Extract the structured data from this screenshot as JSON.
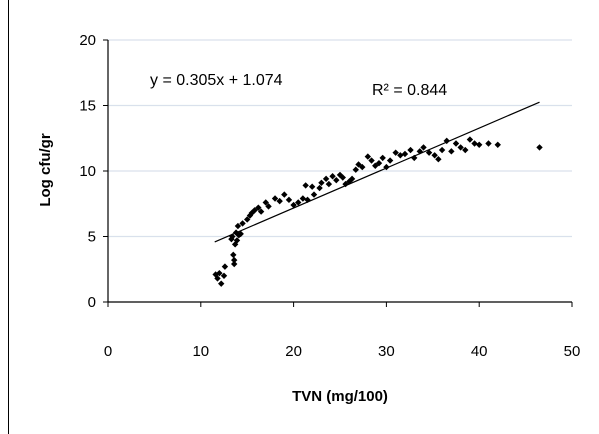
{
  "chart_data": {
    "type": "scatter",
    "title": "",
    "xlabel": "TVN (mg/100)",
    "ylabel": "Log cfu/gr",
    "xlim": [
      0,
      50
    ],
    "ylim": [
      0,
      20
    ],
    "x_ticks": [
      "0",
      "10",
      "20",
      "30",
      "40",
      "50"
    ],
    "y_ticks": [
      "0",
      "5",
      "10",
      "15",
      "20"
    ],
    "grid": "horizontal",
    "colors": {
      "points": "#000000",
      "gridline": "#d9e1ec",
      "trendline": "#000000",
      "axis": "#000000"
    },
    "trendline": {
      "slope": 0.305,
      "intercept": 1.074,
      "x_range": [
        11.5,
        46.5
      ]
    },
    "annotations": {
      "equation": "y = 0.305x + 1.074",
      "r_squared": "R² = 0.844"
    },
    "points": [
      [
        11.6,
        2.1
      ],
      [
        11.8,
        1.8
      ],
      [
        12.0,
        2.2
      ],
      [
        12.2,
        1.4
      ],
      [
        12.5,
        2.0
      ],
      [
        12.6,
        2.7
      ],
      [
        13.3,
        4.8
      ],
      [
        13.4,
        5.0
      ],
      [
        13.5,
        3.6
      ],
      [
        13.6,
        3.2
      ],
      [
        13.6,
        2.9
      ],
      [
        13.7,
        4.4
      ],
      [
        13.8,
        5.3
      ],
      [
        13.9,
        4.7
      ],
      [
        14.0,
        5.8
      ],
      [
        14.1,
        5.1
      ],
      [
        14.3,
        5.2
      ],
      [
        14.5,
        6.0
      ],
      [
        15.0,
        6.3
      ],
      [
        15.3,
        6.6
      ],
      [
        15.5,
        6.8
      ],
      [
        15.8,
        7.0
      ],
      [
        16.2,
        7.2
      ],
      [
        16.5,
        6.9
      ],
      [
        17.0,
        7.6
      ],
      [
        17.3,
        7.3
      ],
      [
        18.0,
        7.9
      ],
      [
        18.5,
        7.7
      ],
      [
        19.0,
        8.2
      ],
      [
        19.5,
        7.8
      ],
      [
        20.0,
        7.4
      ],
      [
        20.5,
        7.6
      ],
      [
        21.0,
        7.9
      ],
      [
        21.3,
        8.9
      ],
      [
        21.5,
        7.8
      ],
      [
        22.0,
        8.8
      ],
      [
        22.2,
        8.2
      ],
      [
        22.8,
        8.7
      ],
      [
        23.0,
        9.1
      ],
      [
        23.5,
        9.4
      ],
      [
        23.8,
        9.0
      ],
      [
        24.2,
        9.6
      ],
      [
        24.6,
        9.3
      ],
      [
        25.0,
        9.7
      ],
      [
        25.3,
        9.5
      ],
      [
        25.6,
        9.0
      ],
      [
        26.0,
        9.2
      ],
      [
        26.3,
        9.4
      ],
      [
        26.7,
        10.1
      ],
      [
        27.0,
        10.5
      ],
      [
        27.4,
        10.3
      ],
      [
        28.0,
        11.1
      ],
      [
        28.4,
        10.8
      ],
      [
        28.8,
        10.4
      ],
      [
        29.2,
        10.6
      ],
      [
        29.6,
        11.0
      ],
      [
        30.0,
        10.3
      ],
      [
        30.4,
        10.8
      ],
      [
        31.0,
        11.4
      ],
      [
        31.5,
        11.2
      ],
      [
        32.0,
        11.3
      ],
      [
        32.6,
        11.6
      ],
      [
        33.0,
        11.0
      ],
      [
        33.6,
        11.5
      ],
      [
        34.0,
        11.8
      ],
      [
        34.6,
        11.4
      ],
      [
        35.2,
        11.2
      ],
      [
        35.6,
        10.9
      ],
      [
        36.0,
        11.6
      ],
      [
        36.5,
        12.3
      ],
      [
        37.0,
        11.5
      ],
      [
        37.5,
        12.1
      ],
      [
        38.0,
        11.8
      ],
      [
        38.5,
        11.6
      ],
      [
        39.0,
        12.4
      ],
      [
        39.5,
        12.1
      ],
      [
        40.0,
        12.0
      ],
      [
        41.0,
        12.1
      ],
      [
        42.0,
        12.0
      ],
      [
        46.5,
        11.8
      ]
    ]
  }
}
